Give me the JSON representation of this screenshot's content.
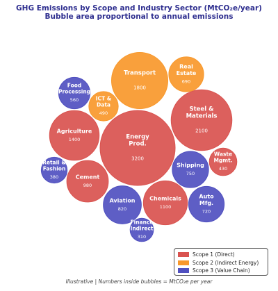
{
  "title_line1": "GHG Emissions by Scope and Industry Sector (MtCO₂e/year)",
  "title_line2": "Bubble area proportional to annual emissions",
  "footnote": "Illustrative | Numbers inside bubbles = MtCO₂e per year",
  "scope_colors": {
    "scope1": "#d9534f",
    "scope2": "#f8982b",
    "scope3": "#5050c0"
  },
  "legend": [
    {
      "label": "Scope 1 (Direct)",
      "scope": "scope1"
    },
    {
      "label": "Scope 2 (Indirect Energy)",
      "scope": "scope2"
    },
    {
      "label": "Scope 3 (Value Chain)",
      "scope": "scope3"
    }
  ],
  "chart_data": {
    "type": "bubble",
    "title": "GHG Emissions by Scope and Industry Sector (MtCO₂e/year)",
    "subtitle": "Bubble area proportional to annual emissions",
    "unit": "MtCO₂e per year",
    "series": [
      {
        "name": "Scope 1 (Direct)",
        "color": "#d9534f"
      },
      {
        "name": "Scope 2 (Indirect Energy)",
        "color": "#f8982b"
      },
      {
        "name": "Scope 3 (Value Chain)",
        "color": "#5050c0"
      }
    ],
    "bubbles": [
      {
        "id": "energy-prod",
        "label": [
          "Energy",
          "Prod."
        ],
        "value": 3200,
        "scope": "scope1"
      },
      {
        "id": "steel-materials",
        "label": [
          "Steel &",
          "Materials"
        ],
        "value": 2100,
        "scope": "scope1"
      },
      {
        "id": "transport",
        "label": [
          "Transport"
        ],
        "value": 1800,
        "scope": "scope2"
      },
      {
        "id": "agriculture",
        "label": [
          "Agriculture"
        ],
        "value": 1400,
        "scope": "scope1"
      },
      {
        "id": "chemicals",
        "label": [
          "Chemicals"
        ],
        "value": 1100,
        "scope": "scope1"
      },
      {
        "id": "cement",
        "label": [
          "Cement"
        ],
        "value": 980,
        "scope": "scope1"
      },
      {
        "id": "aviation",
        "label": [
          "Aviation"
        ],
        "value": 820,
        "scope": "scope3"
      },
      {
        "id": "shipping",
        "label": [
          "Shipping"
        ],
        "value": 750,
        "scope": "scope3"
      },
      {
        "id": "auto-mfg",
        "label": [
          "Auto",
          "Mfg."
        ],
        "value": 720,
        "scope": "scope3"
      },
      {
        "id": "real-estate",
        "label": [
          "Real",
          "Estate"
        ],
        "value": 690,
        "scope": "scope2"
      },
      {
        "id": "food-processing",
        "label": [
          "Food",
          "Processing"
        ],
        "value": 560,
        "scope": "scope3"
      },
      {
        "id": "ict-data",
        "label": [
          "ICT &",
          "Data"
        ],
        "value": 490,
        "scope": "scope2"
      },
      {
        "id": "waste-mgmt",
        "label": [
          "Waste",
          "Mgmt."
        ],
        "value": 430,
        "scope": "scope1"
      },
      {
        "id": "retail-fashion",
        "label": [
          "Retail &",
          "Fashion"
        ],
        "value": 380,
        "scope": "scope3"
      },
      {
        "id": "finance-indirect",
        "label": [
          "Finance",
          "(Indirect)"
        ],
        "value": 310,
        "scope": "scope3"
      }
    ]
  }
}
